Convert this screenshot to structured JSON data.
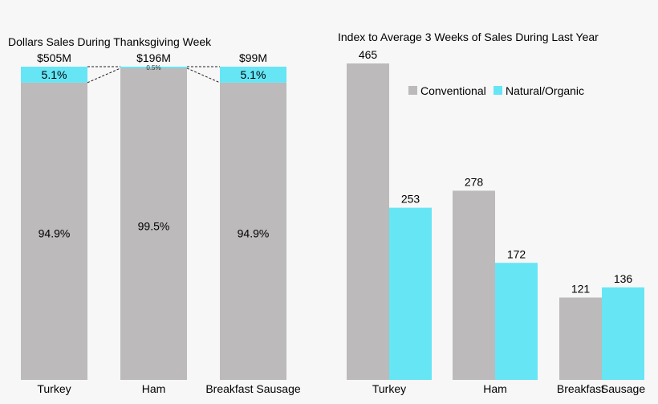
{
  "chart_data": [
    {
      "type": "bar",
      "stacked": true,
      "normalized": true,
      "title": "Dollars Sales During Thanksgiving Week",
      "categories": [
        "Turkey",
        "Ham",
        "Breakfast Sausage"
      ],
      "totals": [
        "$505M",
        "$196M",
        "$99M"
      ],
      "series": [
        {
          "name": "Conventional",
          "values": [
            94.9,
            99.5,
            94.9
          ],
          "labels": [
            "94.9%",
            "99.5%",
            "94.9%"
          ]
        },
        {
          "name": "Natural/Organic",
          "values": [
            5.1,
            0.5,
            5.1
          ],
          "labels": [
            "5.1%",
            "0.5%",
            "5.1%"
          ]
        }
      ],
      "ylim": [
        0,
        100
      ],
      "xlabel": "",
      "ylabel": "",
      "grid": false
    },
    {
      "type": "bar",
      "title": "Index to Average 3 Weeks of Sales During Last Year",
      "categories": [
        "Turkey",
        "Ham",
        "Breakfast Sausage"
      ],
      "category_labels": [
        [
          "Turkey"
        ],
        [
          "Ham"
        ],
        [
          "Breakfast",
          "Sausage"
        ]
      ],
      "series": [
        {
          "name": "Conventional",
          "values": [
            465,
            278,
            121
          ]
        },
        {
          "name": "Natural/Organic",
          "values": [
            253,
            172,
            136
          ]
        }
      ],
      "ylim": [
        0,
        500
      ],
      "legend": "top-right",
      "xlabel": "",
      "ylabel": "",
      "grid": false
    }
  ],
  "colors": {
    "conventional": "#bcbaba",
    "organic": "#66e5f5",
    "background": "#f7f7f7"
  }
}
